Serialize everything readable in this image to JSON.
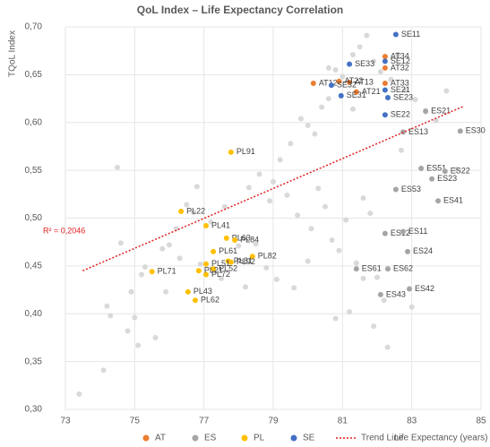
{
  "chart_data": {
    "type": "scatter",
    "title": "QoL Index – Life Expectancy Correlation",
    "xlabel": "Life Expectancy  (years)",
    "ylabel": "TQoL Index",
    "annotation": "R² = 0,2046",
    "xlim": [
      73,
      85
    ],
    "xticks": [
      73,
      75,
      77,
      79,
      81,
      83,
      85
    ],
    "ylim": [
      0.3,
      0.7
    ],
    "yticks": [
      {
        "value": 0.3,
        "label": "0,30"
      },
      {
        "value": 0.35,
        "label": "0,35"
      },
      {
        "value": 0.4,
        "label": "0,40"
      },
      {
        "value": 0.45,
        "label": "0,45"
      },
      {
        "value": 0.5,
        "label": "0,50"
      },
      {
        "value": 0.55,
        "label": "0,55"
      },
      {
        "value": 0.6,
        "label": "0,60"
      },
      {
        "value": 0.65,
        "label": "0,65"
      },
      {
        "value": 0.7,
        "label": "0,70"
      }
    ],
    "grid": true,
    "series": [
      {
        "color": "#d9d9d9",
        "x": [
          73.4,
          74.1,
          74.3,
          74.6,
          74.8,
          75.1,
          75.3,
          75.6,
          75.9,
          76.2,
          76.5,
          76.8,
          74.5,
          74.9,
          75.2,
          75.8,
          76.3,
          76.7,
          77.2,
          77.6,
          78.0,
          78.3,
          78.6,
          78.9,
          79.2,
          79.5,
          79.8,
          80.0,
          80.2,
          80.4,
          80.6,
          80.8,
          81.0,
          81.3,
          81.5,
          81.7,
          81.9,
          82.1,
          82.4,
          82.6,
          82.8,
          83.1,
          83.4,
          83.7,
          84.0,
          84.3,
          79.0,
          79.4,
          79.7,
          80.1,
          80.3,
          80.5,
          80.7,
          80.9,
          81.1,
          81.4,
          81.6,
          81.8,
          82.0,
          82.2,
          78.5,
          78.8,
          79.1,
          79.6,
          80.0,
          80.8,
          81.2,
          81.6,
          82.3,
          83.0,
          76.0,
          76.9,
          77.5,
          78.2,
          74.2,
          75.0,
          81.9,
          82.7,
          80.6,
          81.3
        ],
        "y": [
          0.316,
          0.341,
          0.398,
          0.474,
          0.382,
          0.367,
          0.449,
          0.375,
          0.423,
          0.489,
          0.514,
          0.533,
          0.553,
          0.423,
          0.441,
          0.468,
          0.458,
          0.506,
          0.496,
          0.512,
          0.471,
          0.532,
          0.546,
          0.518,
          0.561,
          0.578,
          0.604,
          0.597,
          0.588,
          0.616,
          0.625,
          0.655,
          0.648,
          0.671,
          0.679,
          0.691,
          0.664,
          0.653,
          0.645,
          0.671,
          0.634,
          0.624,
          0.611,
          0.602,
          0.633,
          0.551,
          0.538,
          0.524,
          0.503,
          0.489,
          0.531,
          0.512,
          0.477,
          0.466,
          0.498,
          0.453,
          0.521,
          0.505,
          0.438,
          0.414,
          0.473,
          0.448,
          0.436,
          0.427,
          0.455,
          0.395,
          0.402,
          0.437,
          0.365,
          0.407,
          0.472,
          0.452,
          0.437,
          0.428,
          0.408,
          0.396,
          0.387,
          0.571,
          0.657,
          0.614
        ]
      },
      {
        "name": "AT",
        "color": "#ed7d31",
        "labels": [
          "AT34",
          "AT32",
          "AT33",
          "AT12",
          "AT13",
          "AT21",
          "AT22"
        ],
        "x": [
          82.23,
          82.23,
          82.23,
          80.16,
          81.2,
          81.4,
          80.9
        ],
        "y": [
          0.669,
          0.657,
          0.641,
          0.641,
          0.642,
          0.632,
          0.643
        ]
      },
      {
        "name": "ES",
        "color": "#a5a5a5",
        "labels": [
          "ES30",
          "ES21",
          "ES13",
          "ES51",
          "ES22",
          "ES23",
          "ES53",
          "ES41",
          "ES12",
          "ES11",
          "ES24",
          "ES61",
          "ES62",
          "ES42",
          "ES43"
        ],
        "x": [
          84.4,
          83.4,
          82.75,
          83.27,
          83.96,
          83.58,
          82.54,
          83.76,
          82.23,
          82.75,
          82.88,
          81.4,
          82.31,
          82.93,
          82.1
        ],
        "y": [
          0.591,
          0.612,
          0.59,
          0.552,
          0.549,
          0.541,
          0.53,
          0.518,
          0.484,
          0.486,
          0.465,
          0.447,
          0.447,
          0.426,
          0.42
        ]
      },
      {
        "name": "PL",
        "color": "#ffc000",
        "labels": [
          "PL91",
          "PL22",
          "PL41",
          "PL63",
          "PL84",
          "PL61",
          "PL82",
          "PL81",
          "PL92",
          "PL51",
          "PL52",
          "PL71",
          "PL72",
          "PL21",
          "PL43",
          "PL62"
        ],
        "x": [
          77.78,
          76.34,
          77.06,
          77.65,
          77.89,
          77.27,
          78.4,
          77.7,
          77.78,
          77.06,
          77.27,
          75.5,
          77.06,
          76.85,
          76.54,
          76.75
        ],
        "y": [
          0.569,
          0.507,
          0.492,
          0.479,
          0.477,
          0.465,
          0.46,
          0.455,
          0.454,
          0.452,
          0.447,
          0.444,
          0.441,
          0.445,
          0.423,
          0.414
        ]
      },
      {
        "name": "SE",
        "color": "#4472c4",
        "labels": [
          "SE11",
          "SE12",
          "SE33",
          "SE21",
          "SE23",
          "SE22",
          "SE31",
          "SE32"
        ],
        "x": [
          82.54,
          82.23,
          81.2,
          82.23,
          82.31,
          82.23,
          80.96,
          80.68
        ],
        "y": [
          0.692,
          0.664,
          0.661,
          0.634,
          0.626,
          0.608,
          0.628,
          0.639
        ]
      }
    ],
    "trendline": {
      "name": "Trend Line",
      "color": "#e02020",
      "x": [
        73.5,
        84.5
      ],
      "y": [
        0.445,
        0.617
      ]
    }
  }
}
